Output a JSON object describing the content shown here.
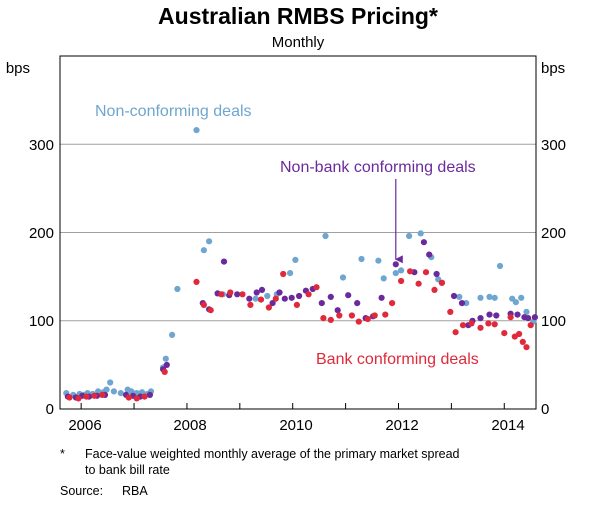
{
  "chart_data": {
    "type": "scatter",
    "title": "Australian RMBS Pricing*",
    "subtitle": "Monthly",
    "ylabel_left": "bps",
    "ylabel_right": "bps",
    "xlim": [
      2005.6,
      2014.6
    ],
    "ylim": [
      0,
      400
    ],
    "y_ticks": [
      0,
      100,
      200,
      300
    ],
    "x_tick_labels": [
      "2006",
      "2008",
      "2010",
      "2012",
      "2014"
    ],
    "series": [
      {
        "name": "Non-conforming deals",
        "color": "#6fa6cf",
        "points": [
          [
            2005.72,
            18
          ],
          [
            2005.85,
            16
          ],
          [
            2005.97,
            17
          ],
          [
            2006.05,
            16
          ],
          [
            2006.12,
            18
          ],
          [
            2006.22,
            17
          ],
          [
            2006.32,
            20
          ],
          [
            2006.42,
            19
          ],
          [
            2006.48,
            22
          ],
          [
            2006.55,
            30
          ],
          [
            2006.62,
            20
          ],
          [
            2006.75,
            18
          ],
          [
            2006.88,
            22
          ],
          [
            2006.95,
            20
          ],
          [
            2007.05,
            18
          ],
          [
            2007.15,
            19
          ],
          [
            2007.25,
            17
          ],
          [
            2007.32,
            20
          ],
          [
            2007.55,
            47
          ],
          [
            2007.6,
            57
          ],
          [
            2007.72,
            84
          ],
          [
            2007.82,
            136
          ],
          [
            2008.18,
            316
          ],
          [
            2008.32,
            180
          ],
          [
            2008.42,
            190
          ],
          [
            2008.68,
            130
          ],
          [
            2009.3,
            125
          ],
          [
            2009.52,
            128
          ],
          [
            2009.7,
            130
          ],
          [
            2009.95,
            154
          ],
          [
            2010.05,
            169
          ],
          [
            2010.62,
            196
          ],
          [
            2010.95,
            149
          ],
          [
            2011.3,
            170
          ],
          [
            2011.62,
            168
          ],
          [
            2011.72,
            148
          ],
          [
            2011.95,
            154
          ],
          [
            2012.05,
            157
          ],
          [
            2012.2,
            196
          ],
          [
            2012.42,
            199
          ],
          [
            2012.62,
            172
          ],
          [
            2012.75,
            147
          ],
          [
            2013.15,
            127
          ],
          [
            2013.28,
            120
          ],
          [
            2013.55,
            126
          ],
          [
            2013.72,
            127
          ],
          [
            2013.82,
            126
          ],
          [
            2013.92,
            162
          ],
          [
            2014.15,
            125
          ],
          [
            2014.22,
            121
          ],
          [
            2014.32,
            126
          ],
          [
            2014.42,
            110
          ],
          [
            2014.55,
            99
          ]
        ]
      },
      {
        "name": "Non-bank conforming deals",
        "color": "#6a2a9c",
        "points": [
          [
            2005.75,
            14
          ],
          [
            2005.9,
            13
          ],
          [
            2006.02,
            15
          ],
          [
            2006.15,
            14
          ],
          [
            2006.3,
            15
          ],
          [
            2006.45,
            16
          ],
          [
            2006.85,
            16
          ],
          [
            2006.98,
            15
          ],
          [
            2007.12,
            14
          ],
          [
            2007.3,
            16
          ],
          [
            2007.55,
            45
          ],
          [
            2007.62,
            50
          ],
          [
            2008.3,
            120
          ],
          [
            2008.42,
            113
          ],
          [
            2008.58,
            131
          ],
          [
            2008.7,
            167
          ],
          [
            2008.8,
            129
          ],
          [
            2008.95,
            130
          ],
          [
            2009.18,
            125
          ],
          [
            2009.32,
            132
          ],
          [
            2009.42,
            135
          ],
          [
            2009.62,
            120
          ],
          [
            2009.75,
            132
          ],
          [
            2009.85,
            125
          ],
          [
            2009.98,
            126
          ],
          [
            2010.12,
            128
          ],
          [
            2010.25,
            134
          ],
          [
            2010.38,
            136
          ],
          [
            2010.55,
            120
          ],
          [
            2010.72,
            127
          ],
          [
            2010.85,
            112
          ],
          [
            2011.05,
            129
          ],
          [
            2011.22,
            120
          ],
          [
            2011.38,
            103
          ],
          [
            2011.52,
            105
          ],
          [
            2011.68,
            126
          ],
          [
            2011.95,
            164
          ],
          [
            2012.3,
            155
          ],
          [
            2012.48,
            189
          ],
          [
            2012.58,
            175
          ],
          [
            2012.72,
            153
          ],
          [
            2012.82,
            143
          ],
          [
            2013.05,
            128
          ],
          [
            2013.2,
            120
          ],
          [
            2013.32,
            95
          ],
          [
            2013.4,
            100
          ],
          [
            2013.55,
            103
          ],
          [
            2013.72,
            107
          ],
          [
            2013.85,
            106
          ],
          [
            2014.12,
            108
          ],
          [
            2014.25,
            107
          ],
          [
            2014.38,
            104
          ],
          [
            2014.45,
            103
          ],
          [
            2014.58,
            104
          ]
        ]
      },
      {
        "name": "Bank conforming deals",
        "color": "#e0293a",
        "points": [
          [
            2005.78,
            13
          ],
          [
            2005.95,
            12
          ],
          [
            2006.1,
            14
          ],
          [
            2006.25,
            15
          ],
          [
            2006.4,
            16
          ],
          [
            2006.9,
            13
          ],
          [
            2007.05,
            12
          ],
          [
            2007.2,
            14
          ],
          [
            2007.58,
            42
          ],
          [
            2008.18,
            144
          ],
          [
            2008.32,
            118
          ],
          [
            2008.45,
            112
          ],
          [
            2008.65,
            130
          ],
          [
            2008.82,
            132
          ],
          [
            2009.05,
            130
          ],
          [
            2009.2,
            118
          ],
          [
            2009.4,
            124
          ],
          [
            2009.55,
            115
          ],
          [
            2009.68,
            125
          ],
          [
            2009.82,
            153
          ],
          [
            2010.08,
            118
          ],
          [
            2010.3,
            130
          ],
          [
            2010.45,
            138
          ],
          [
            2010.58,
            103
          ],
          [
            2010.72,
            101
          ],
          [
            2010.88,
            106
          ],
          [
            2011.12,
            106
          ],
          [
            2011.25,
            99
          ],
          [
            2011.42,
            102
          ],
          [
            2011.55,
            106
          ],
          [
            2011.75,
            107
          ],
          [
            2011.88,
            120
          ],
          [
            2012.05,
            145
          ],
          [
            2012.22,
            156
          ],
          [
            2012.38,
            142
          ],
          [
            2012.52,
            155
          ],
          [
            2012.68,
            135
          ],
          [
            2012.82,
            143
          ],
          [
            2012.98,
            110
          ],
          [
            2013.08,
            87
          ],
          [
            2013.22,
            95
          ],
          [
            2013.38,
            97
          ],
          [
            2013.55,
            92
          ],
          [
            2013.7,
            97
          ],
          [
            2013.82,
            96
          ],
          [
            2014.0,
            86
          ],
          [
            2014.12,
            104
          ],
          [
            2014.2,
            82
          ],
          [
            2014.28,
            85
          ],
          [
            2014.35,
            76
          ],
          [
            2014.42,
            70
          ],
          [
            2014.5,
            95
          ]
        ]
      }
    ],
    "annotations": {
      "non_conforming": "Non-conforming deals",
      "non_bank": "Non-bank conforming deals",
      "bank": "Bank conforming deals"
    },
    "arrow_annotation": {
      "x": 2011.95,
      "y": 164
    },
    "footnote": {
      "marker": "*",
      "line1": "Face-value weighted monthly average of the primary market spread",
      "line2": "to bank bill rate",
      "source_label": "Source:",
      "source_value": "RBA"
    },
    "gridlines": true
  }
}
